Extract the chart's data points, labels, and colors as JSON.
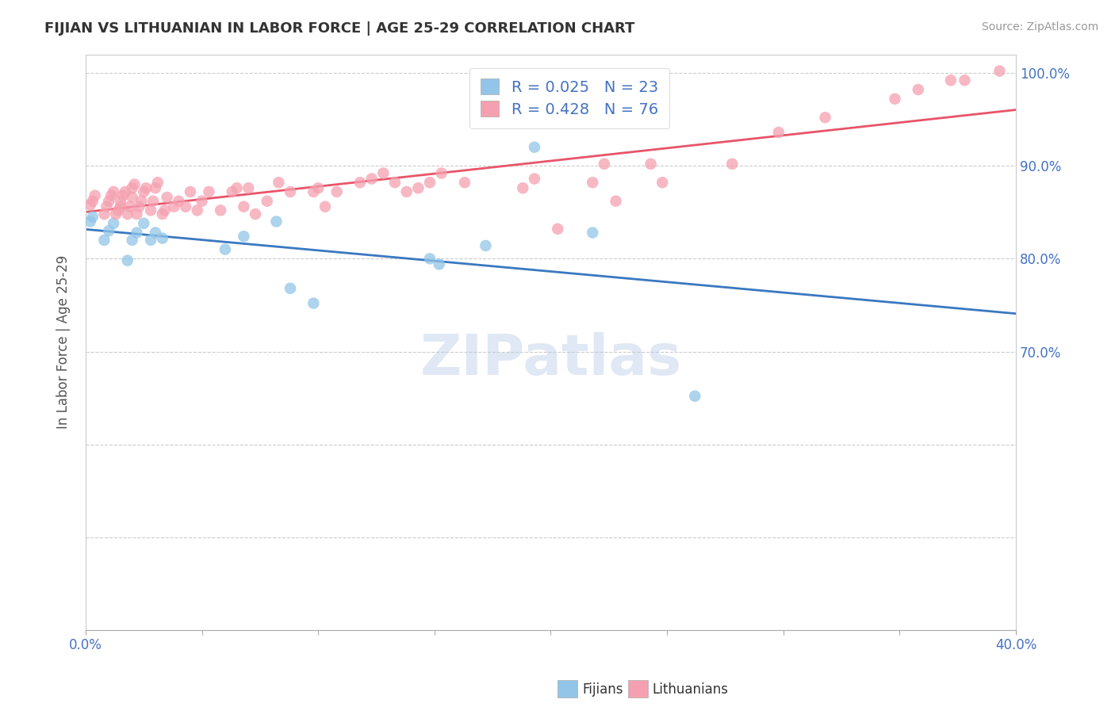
{
  "title": "FIJIAN VS LITHUANIAN IN LABOR FORCE | AGE 25-29 CORRELATION CHART",
  "source_text": "Source: ZipAtlas.com",
  "ylabel": "In Labor Force | Age 25-29",
  "xlim": [
    0.0,
    0.4
  ],
  "ylim": [
    0.4,
    1.02
  ],
  "xtick_positions": [
    0.0,
    0.05,
    0.1,
    0.15,
    0.2,
    0.25,
    0.3,
    0.35,
    0.4
  ],
  "xtick_labels_sparse": {
    "0": "0.0%",
    "8": "40.0%"
  },
  "ytick_positions": [
    0.4,
    0.5,
    0.6,
    0.7,
    0.8,
    0.9,
    1.0
  ],
  "ytick_labels": [
    "",
    "",
    "",
    "70.0%",
    "80.0%",
    "90.0%",
    "100.0%"
  ],
  "fijian_color": "#92c5e8",
  "lithuanian_color": "#f5a0b0",
  "fijian_line_color": "#3a78c0",
  "lithuanian_line_color": "#e8546a",
  "R_fijian": 0.025,
  "N_fijian": 23,
  "R_lithuanian": 0.428,
  "N_lithuanian": 76,
  "watermark": "ZIPatlas",
  "background_color": "#ffffff",
  "fijian_x": [
    0.002,
    0.003,
    0.008,
    0.01,
    0.012,
    0.018,
    0.02,
    0.022,
    0.025,
    0.028,
    0.03,
    0.033,
    0.06,
    0.068,
    0.082,
    0.088,
    0.098,
    0.148,
    0.152,
    0.172,
    0.193,
    0.218,
    0.262
  ],
  "fijian_y": [
    0.84,
    0.845,
    0.82,
    0.83,
    0.838,
    0.798,
    0.82,
    0.828,
    0.838,
    0.82,
    0.828,
    0.822,
    0.81,
    0.824,
    0.84,
    0.768,
    0.752,
    0.8,
    0.794,
    0.814,
    0.92,
    0.828,
    0.652
  ],
  "lithuanian_x": [
    0.002,
    0.003,
    0.004,
    0.008,
    0.009,
    0.01,
    0.011,
    0.012,
    0.013,
    0.014,
    0.015,
    0.015,
    0.016,
    0.017,
    0.018,
    0.019,
    0.02,
    0.02,
    0.021,
    0.022,
    0.023,
    0.024,
    0.025,
    0.026,
    0.028,
    0.029,
    0.03,
    0.031,
    0.033,
    0.034,
    0.035,
    0.038,
    0.04,
    0.043,
    0.045,
    0.048,
    0.05,
    0.053,
    0.058,
    0.063,
    0.065,
    0.068,
    0.07,
    0.073,
    0.078,
    0.083,
    0.088,
    0.098,
    0.1,
    0.103,
    0.108,
    0.118,
    0.123,
    0.128,
    0.133,
    0.138,
    0.143,
    0.148,
    0.153,
    0.163,
    0.188,
    0.193,
    0.203,
    0.218,
    0.223,
    0.228,
    0.243,
    0.248,
    0.278,
    0.298,
    0.318,
    0.348,
    0.358,
    0.372,
    0.378,
    0.393
  ],
  "lithuanian_y": [
    0.858,
    0.862,
    0.868,
    0.848,
    0.856,
    0.862,
    0.868,
    0.872,
    0.848,
    0.852,
    0.856,
    0.862,
    0.868,
    0.872,
    0.848,
    0.856,
    0.866,
    0.876,
    0.88,
    0.848,
    0.856,
    0.862,
    0.872,
    0.876,
    0.852,
    0.862,
    0.876,
    0.882,
    0.848,
    0.852,
    0.866,
    0.856,
    0.862,
    0.856,
    0.872,
    0.852,
    0.862,
    0.872,
    0.852,
    0.872,
    0.876,
    0.856,
    0.876,
    0.848,
    0.862,
    0.882,
    0.872,
    0.872,
    0.876,
    0.856,
    0.872,
    0.882,
    0.886,
    0.892,
    0.882,
    0.872,
    0.876,
    0.882,
    0.892,
    0.882,
    0.876,
    0.886,
    0.832,
    0.882,
    0.902,
    0.862,
    0.902,
    0.882,
    0.902,
    0.936,
    0.952,
    0.972,
    0.982,
    0.992,
    0.992,
    1.002
  ]
}
